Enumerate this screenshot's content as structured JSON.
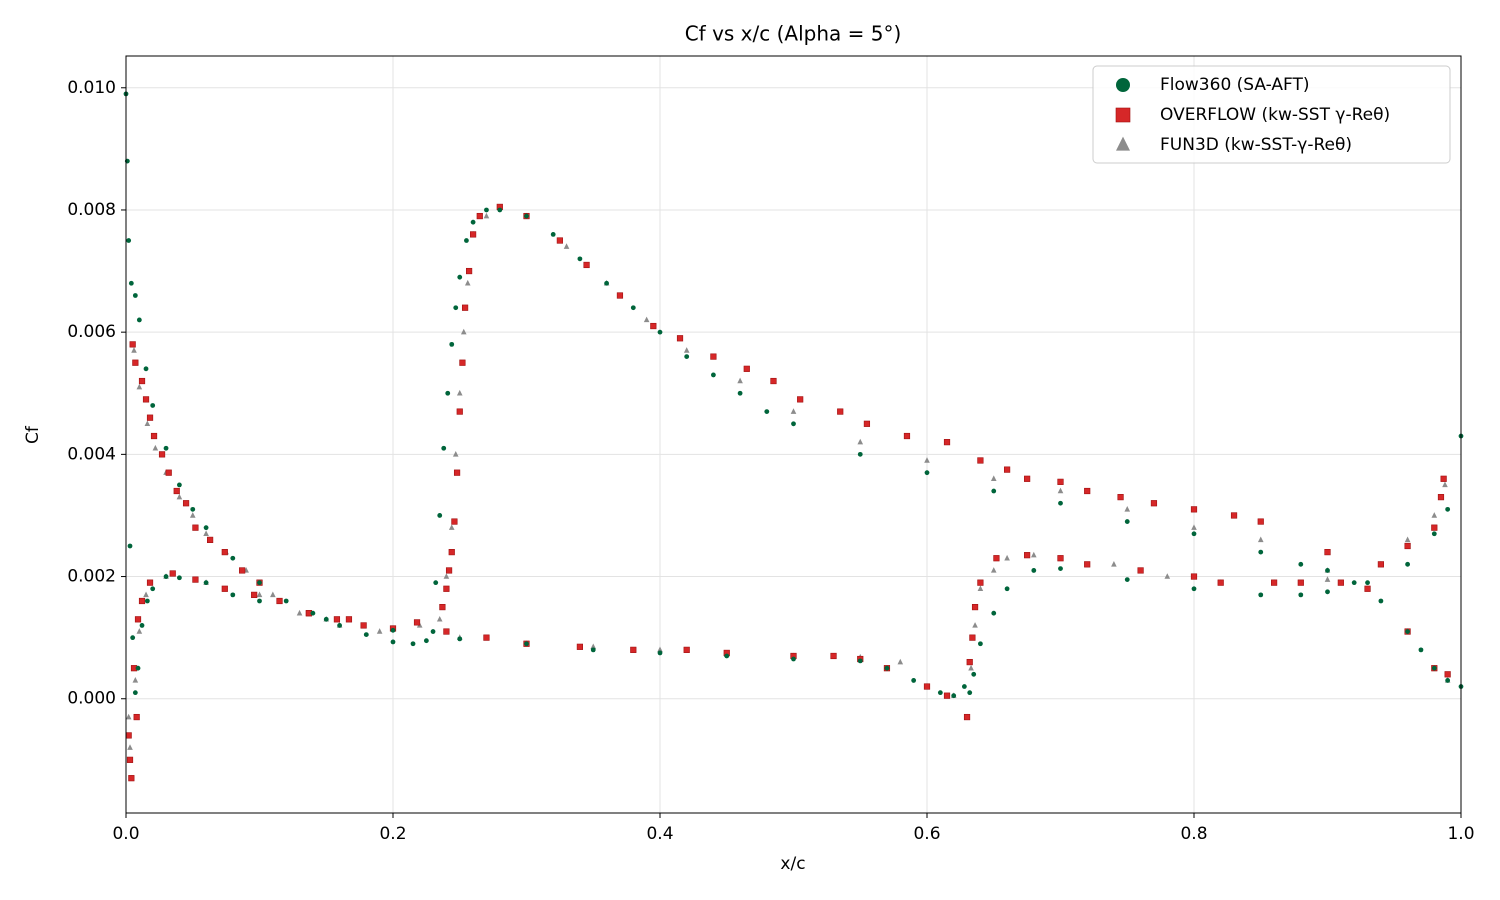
{
  "chart_data": {
    "type": "scatter",
    "title": "Cf vs x/c (Alpha = 5°)",
    "x_label": "x/c",
    "y_label": "Cf",
    "xlim": [
      0,
      1
    ],
    "ylim": [
      -0.00187,
      0.01052
    ],
    "xticks": [
      {
        "value": 0,
        "label": "0.0"
      },
      {
        "value": 0.2,
        "label": "0.2"
      },
      {
        "value": 0.4,
        "label": "0.4"
      },
      {
        "value": 0.6,
        "label": "0.6"
      },
      {
        "value": 0.8,
        "label": "0.8"
      },
      {
        "value": 1,
        "label": "1.0"
      }
    ],
    "yticks": [
      {
        "value": 0,
        "label": "0.000"
      },
      {
        "value": 0.002,
        "label": "0.002"
      },
      {
        "value": 0.004,
        "label": "0.004"
      },
      {
        "value": 0.006,
        "label": "0.006"
      },
      {
        "value": 0.008,
        "label": "0.008"
      },
      {
        "value": 0.01,
        "label": "0.010"
      }
    ],
    "grid": true,
    "legend": "upper right",
    "series": [
      {
        "name": "Flow360 (SA-AFT)",
        "color": "#00653b",
        "marker": "circle",
        "x": [
          0.0,
          0.001,
          0.002,
          0.004,
          0.007,
          0.01,
          0.015,
          0.02,
          0.03,
          0.04,
          0.05,
          0.06,
          0.08,
          0.1,
          0.12,
          0.14,
          0.16,
          0.18,
          0.2,
          0.215,
          0.225,
          0.23,
          0.232,
          0.235,
          0.238,
          0.241,
          0.244,
          0.247,
          0.25,
          0.255,
          0.26,
          0.27,
          0.28,
          0.3,
          0.32,
          0.34,
          0.36,
          0.38,
          0.4,
          0.42,
          0.44,
          0.46,
          0.48,
          0.5,
          0.55,
          0.6,
          0.65,
          0.7,
          0.75,
          0.8,
          0.85,
          0.88,
          0.9,
          0.92,
          0.94,
          0.96,
          0.97,
          0.98,
          0.99,
          1.0,
          0.003,
          0.005,
          0.007,
          0.009,
          0.012,
          0.016,
          0.02,
          0.03,
          0.04,
          0.06,
          0.08,
          0.1,
          0.15,
          0.2,
          0.25,
          0.3,
          0.35,
          0.4,
          0.45,
          0.5,
          0.55,
          0.57,
          0.59,
          0.61,
          0.62,
          0.628,
          0.632,
          0.635,
          0.64,
          0.65,
          0.66,
          0.68,
          0.7,
          0.75,
          0.8,
          0.85,
          0.88,
          0.9,
          0.93,
          0.96,
          0.98,
          0.99,
          1.0
        ],
        "values": [
          0.0099,
          0.0088,
          0.0075,
          0.0068,
          0.0066,
          0.0062,
          0.0054,
          0.0048,
          0.0041,
          0.0035,
          0.0031,
          0.0028,
          0.0023,
          0.0019,
          0.0016,
          0.0014,
          0.0012,
          0.00105,
          0.00093,
          0.0009,
          0.00095,
          0.0011,
          0.0019,
          0.003,
          0.0041,
          0.005,
          0.0058,
          0.0064,
          0.0069,
          0.0075,
          0.0078,
          0.008,
          0.008,
          0.0079,
          0.0076,
          0.0072,
          0.0068,
          0.0064,
          0.006,
          0.0056,
          0.0053,
          0.005,
          0.0047,
          0.0045,
          0.004,
          0.0037,
          0.0034,
          0.0032,
          0.0029,
          0.0027,
          0.0024,
          0.0022,
          0.0021,
          0.0019,
          0.0016,
          0.0011,
          0.0008,
          0.0005,
          0.0003,
          0.0002,
          0.0025,
          0.001,
          0.0001,
          0.0005,
          0.0012,
          0.0016,
          0.0018,
          0.002,
          0.00198,
          0.0019,
          0.0017,
          0.0016,
          0.0013,
          0.00112,
          0.00098,
          0.0009,
          0.0008,
          0.00075,
          0.0007,
          0.00065,
          0.00062,
          0.0005,
          0.0003,
          0.0001,
          5e-05,
          0.0002,
          0.0001,
          0.0004,
          0.0009,
          0.0014,
          0.0018,
          0.0021,
          0.00213,
          0.00195,
          0.0018,
          0.0017,
          0.0017,
          0.00175,
          0.0019,
          0.0022,
          0.0027,
          0.0031,
          0.0043
        ]
      },
      {
        "name": "OVERFLOW (kw-SST γ-Reθ)",
        "color": "#d62728",
        "marker": "square",
        "x": [
          0.003,
          0.005,
          0.007,
          0.012,
          0.015,
          0.018,
          0.021,
          0.027,
          0.032,
          0.038,
          0.045,
          0.052,
          0.063,
          0.074,
          0.087,
          0.1,
          0.115,
          0.137,
          0.158,
          0.178,
          0.2,
          0.218,
          0.237,
          0.24,
          0.242,
          0.244,
          0.246,
          0.248,
          0.25,
          0.252,
          0.254,
          0.257,
          0.26,
          0.265,
          0.28,
          0.3,
          0.325,
          0.345,
          0.37,
          0.395,
          0.415,
          0.44,
          0.465,
          0.485,
          0.505,
          0.535,
          0.555,
          0.585,
          0.615,
          0.64,
          0.66,
          0.675,
          0.7,
          0.72,
          0.745,
          0.77,
          0.8,
          0.83,
          0.85,
          0.9,
          0.93,
          0.96,
          0.98,
          0.99,
          0.002,
          0.004,
          0.006,
          0.008,
          0.009,
          0.012,
          0.018,
          0.035,
          0.052,
          0.074,
          0.096,
          0.137,
          0.167,
          0.24,
          0.27,
          0.3,
          0.34,
          0.38,
          0.42,
          0.45,
          0.5,
          0.53,
          0.55,
          0.57,
          0.6,
          0.615,
          0.63,
          0.632,
          0.634,
          0.636,
          0.64,
          0.652,
          0.675,
          0.7,
          0.72,
          0.76,
          0.8,
          0.82,
          0.86,
          0.88,
          0.91,
          0.94,
          0.96,
          0.98,
          0.985,
          0.987
        ],
        "values": [
          -0.001,
          0.0058,
          0.0055,
          0.0052,
          0.0049,
          0.0046,
          0.0043,
          0.004,
          0.0037,
          0.0034,
          0.0032,
          0.0028,
          0.0026,
          0.0024,
          0.0021,
          0.0019,
          0.0016,
          0.0014,
          0.0013,
          0.0012,
          0.00115,
          0.00125,
          0.0015,
          0.0018,
          0.0021,
          0.0024,
          0.0029,
          0.0037,
          0.0047,
          0.0055,
          0.0064,
          0.007,
          0.0076,
          0.0079,
          0.00805,
          0.0079,
          0.0075,
          0.0071,
          0.0066,
          0.0061,
          0.0059,
          0.0056,
          0.0054,
          0.0052,
          0.0049,
          0.0047,
          0.0045,
          0.0043,
          0.0042,
          0.0039,
          0.00375,
          0.0036,
          0.00355,
          0.0034,
          0.0033,
          0.0032,
          0.0031,
          0.003,
          0.0029,
          0.0024,
          0.0018,
          0.0011,
          0.0005,
          0.0004,
          -0.0006,
          -0.0013,
          0.0005,
          -0.0003,
          0.0013,
          0.0016,
          0.0019,
          0.00205,
          0.00195,
          0.0018,
          0.0017,
          0.0014,
          0.0013,
          0.0011,
          0.001,
          0.0009,
          0.00085,
          0.0008,
          0.0008,
          0.00075,
          0.0007,
          0.0007,
          0.00065,
          0.0005,
          0.0002,
          5e-05,
          -0.0003,
          0.0006,
          0.001,
          0.0015,
          0.0019,
          0.0023,
          0.00235,
          0.0023,
          0.0022,
          0.0021,
          0.002,
          0.0019,
          0.0019,
          0.0019,
          0.0019,
          0.0022,
          0.0025,
          0.0028,
          0.0033,
          0.0036
        ]
      },
      {
        "name": "FUN3D (kw-SST-γ-Reθ)",
        "color": "#8c8c8c",
        "marker": "triangle",
        "x": [
          0.003,
          0.006,
          0.01,
          0.016,
          0.022,
          0.03,
          0.04,
          0.05,
          0.06,
          0.075,
          0.09,
          0.11,
          0.13,
          0.16,
          0.19,
          0.22,
          0.235,
          0.24,
          0.244,
          0.247,
          0.25,
          0.253,
          0.256,
          0.26,
          0.27,
          0.3,
          0.33,
          0.36,
          0.39,
          0.42,
          0.46,
          0.5,
          0.55,
          0.6,
          0.65,
          0.7,
          0.75,
          0.8,
          0.85,
          0.9,
          0.93,
          0.96,
          0.98,
          0.99,
          0.002,
          0.004,
          0.007,
          0.01,
          0.015,
          0.03,
          0.06,
          0.1,
          0.15,
          0.2,
          0.25,
          0.3,
          0.35,
          0.4,
          0.45,
          0.5,
          0.55,
          0.58,
          0.6,
          0.62,
          0.63,
          0.633,
          0.636,
          0.64,
          0.65,
          0.66,
          0.68,
          0.7,
          0.74,
          0.78,
          0.82,
          0.86,
          0.9,
          0.94,
          0.96,
          0.98,
          0.988
        ],
        "values": [
          -0.0008,
          0.0057,
          0.0051,
          0.0045,
          0.0041,
          0.0037,
          0.0033,
          0.003,
          0.0027,
          0.0024,
          0.0021,
          0.0017,
          0.0014,
          0.0012,
          0.0011,
          0.0012,
          0.0013,
          0.002,
          0.0028,
          0.004,
          0.005,
          0.006,
          0.0068,
          0.0076,
          0.0079,
          0.0079,
          0.0074,
          0.0068,
          0.0062,
          0.0057,
          0.0052,
          0.0047,
          0.0042,
          0.0039,
          0.0036,
          0.0034,
          0.0031,
          0.0028,
          0.0026,
          0.0021,
          0.0018,
          0.0011,
          0.0005,
          0.0003,
          -0.0003,
          -0.0013,
          0.0003,
          0.0011,
          0.0017,
          0.002,
          0.0019,
          0.0017,
          0.0013,
          0.00115,
          0.001,
          0.0009,
          0.00085,
          0.0008,
          0.00072,
          0.0007,
          0.00068,
          0.0006,
          0.0002,
          5e-05,
          -0.0003,
          0.0005,
          0.0012,
          0.0018,
          0.0021,
          0.0023,
          0.00235,
          0.0023,
          0.0022,
          0.002,
          0.0019,
          0.0019,
          0.00195,
          0.0022,
          0.0026,
          0.003,
          0.0035
        ]
      }
    ]
  }
}
